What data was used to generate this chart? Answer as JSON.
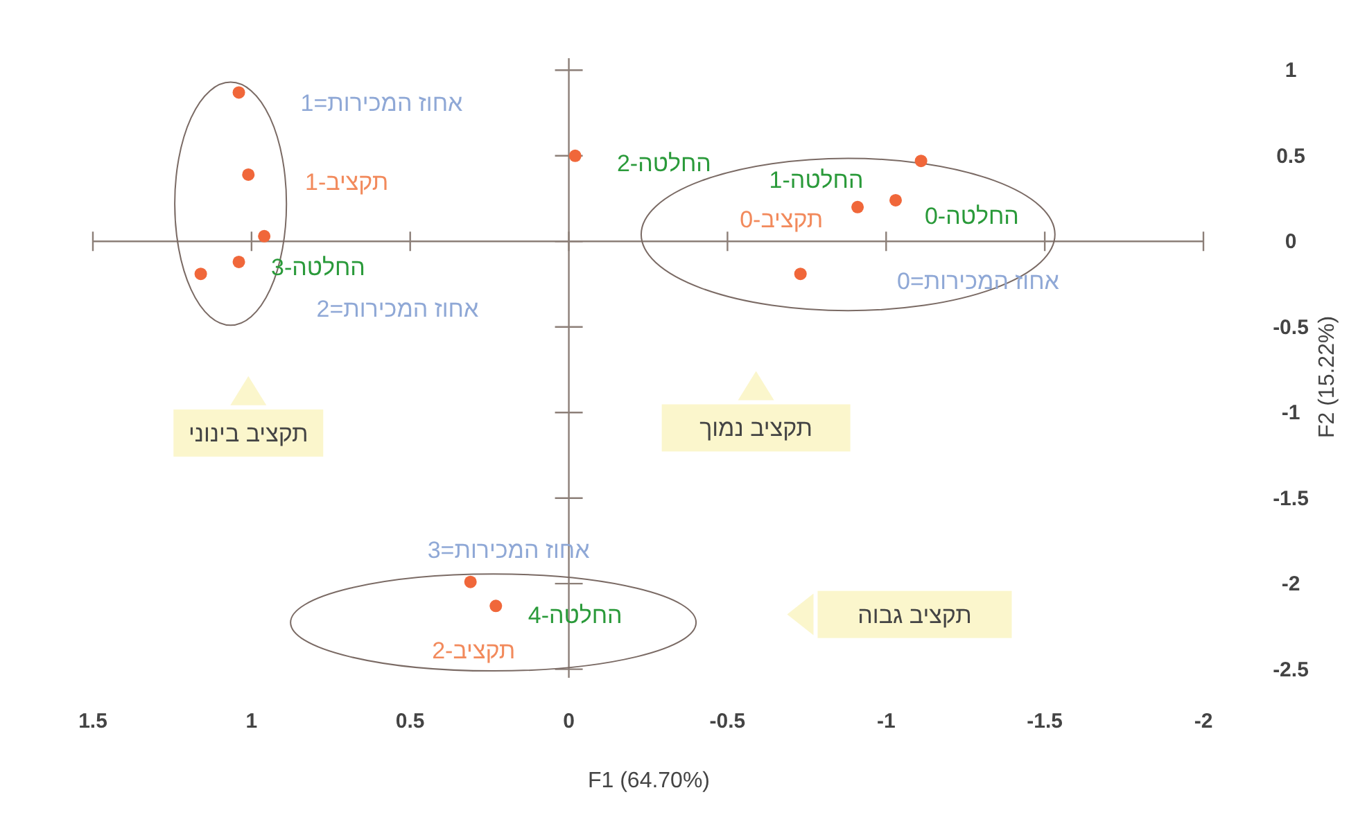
{
  "chart_data": {
    "type": "scatter",
    "xlabel": "F1 (64.70%)",
    "ylabel": "F2 (15.22%)",
    "x": [
      1.04,
      1.01,
      0.96,
      1.04,
      1.16,
      -0.02,
      -1.11,
      -1.03,
      -0.91,
      -0.73,
      0.31,
      0.23
    ],
    "values": [
      0.87,
      0.39,
      0.03,
      -0.12,
      -0.19,
      0.5,
      0.47,
      0.24,
      0.2,
      -0.19,
      -1.99,
      -2.13
    ],
    "color": "#f0673a",
    "marker": "circle",
    "xlim": [
      1.5,
      -2
    ],
    "ylim": [
      -2.55,
      1.07
    ],
    "xticks": [
      1.5,
      1,
      0.5,
      0,
      -0.5,
      -1,
      -1.5,
      -2
    ],
    "yticks": [
      1,
      0.5,
      0,
      -0.5,
      -1,
      -1.5,
      -2,
      -2.5
    ],
    "annotations": [
      "אחוז המכירות=1",
      "תקציב-1",
      "החלטה-3",
      "אחוז המכירות=2",
      "החלטה-2",
      "החלטה-1",
      "החלטה-0",
      "תקציב-0",
      "אחוז המכירות=0",
      "אחוז המכירות=3",
      "החלטה-4",
      "תקציב-2",
      "תקציב בינוני",
      "תקציב נמוך",
      "תקציב גבוה"
    ]
  }
}
